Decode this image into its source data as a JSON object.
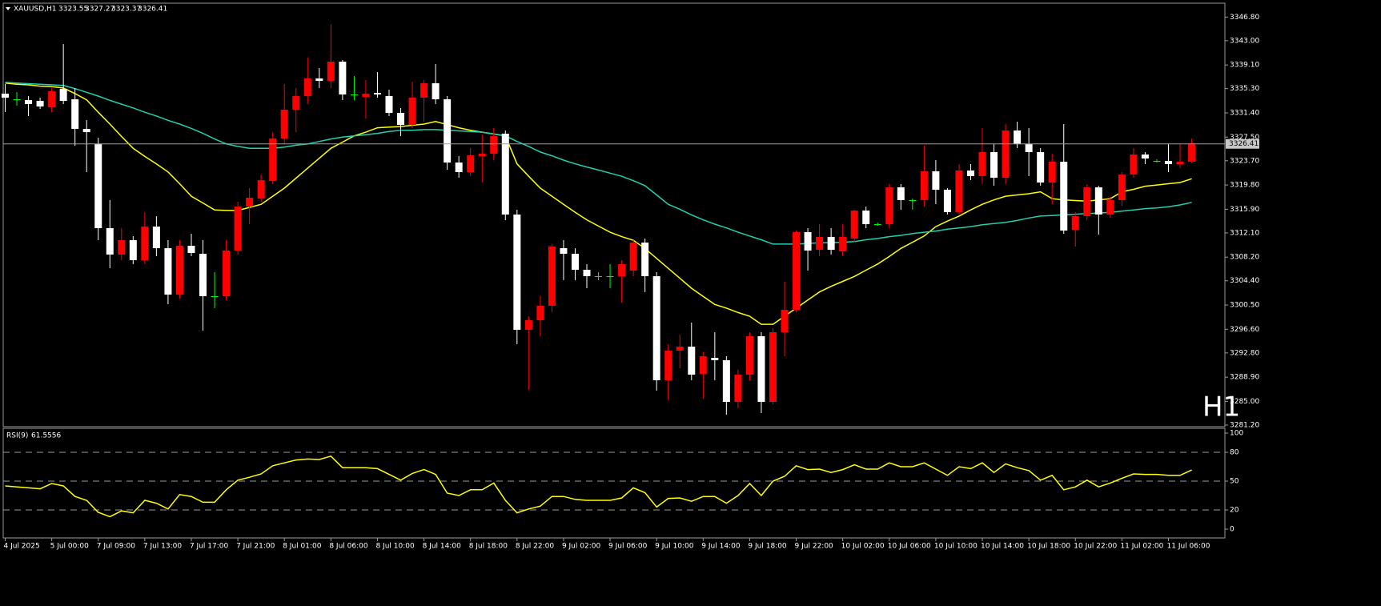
{
  "chart_data": [
    {
      "type": "candlestick",
      "symbol": "XAUUSD,H1",
      "watermark": "H1",
      "up_color": "#ff0000",
      "down_color": "#ffffff",
      "doji_color": "#00ff00",
      "price_line": true,
      "categories": [
        "4 Jul 2025",
        null,
        null,
        null,
        "5 Jul 00:00",
        null,
        null,
        null,
        "7 Jul 09:00",
        null,
        null,
        null,
        "7 Jul 13:00",
        null,
        null,
        null,
        "7 Jul 17:00",
        null,
        null,
        null,
        "7 Jul 21:00",
        null,
        null,
        null,
        "8 Jul 01:00",
        null,
        null,
        null,
        "8 Jul 06:00",
        null,
        null,
        null,
        "8 Jul 10:00",
        null,
        null,
        null,
        "8 Jul 14:00",
        null,
        null,
        null,
        "8 Jul 18:00",
        null,
        null,
        null,
        "8 Jul 22:00",
        null,
        null,
        null,
        "9 Jul 02:00",
        null,
        null,
        null,
        "9 Jul 06:00",
        null,
        null,
        null,
        "9 Jul 10:00",
        null,
        null,
        null,
        "9 Jul 14:00",
        null,
        null,
        null,
        "9 Jul 18:00",
        null,
        null,
        null,
        "9 Jul 22:00",
        null,
        null,
        null,
        "10 Jul 02:00",
        null,
        null,
        null,
        "10 Jul 06:00",
        null,
        null,
        null,
        "10 Jul 10:00",
        null,
        null,
        null,
        "10 Jul 14:00",
        null,
        null,
        null,
        "10 Jul 18:00",
        null,
        null,
        null,
        "10 Jul 22:00",
        null,
        null,
        null,
        "11 Jul 02:00",
        null,
        null,
        null,
        "11 Jul 06:00",
        null,
        null
      ],
      "open": [
        3334.48,
        3333.58,
        3333.45,
        3333.32,
        3332.29,
        3335.25,
        3333.58,
        3328.82,
        3326.37,
        3312.86,
        3308.61,
        3310.93,
        3307.71,
        3313.12,
        3309.64,
        3302.18,
        3310.03,
        3308.74,
        3301.92,
        3301.92,
        3309.26,
        3316.33,
        3317.62,
        3320.45,
        3327.28,
        3331.91,
        3334.1,
        3336.93,
        3336.54,
        3339.63,
        3334.35,
        3333.97,
        3334.61,
        3334.1,
        3331.39,
        3329.46,
        3333.84,
        3336.16,
        3333.58,
        3323.41,
        3321.87,
        3324.44,
        3324.83,
        3328.05,
        3315.05,
        3296.52,
        3298.06,
        3300.38,
        3309.64,
        3308.74,
        3306.17,
        3305.14,
        3305.14,
        3305.14,
        3306.04,
        3310.54,
        3305.14,
        3288.41,
        3293.17,
        3293.81,
        3289.44,
        3292.01,
        3291.63,
        3284.93,
        3289.31,
        3295.49,
        3284.93,
        3296.13,
        3299.73,
        3312.22,
        3309.38,
        3311.45,
        3309.13,
        3311.19,
        3315.69,
        3313.5,
        3313.5,
        3319.42,
        3317.37,
        3317.37,
        3322.0,
        3319.04,
        3315.43,
        3322.13,
        3321.23,
        3325.09,
        3320.97,
        3328.56,
        3326.37,
        3325.09,
        3320.2,
        3323.54,
        3312.6,
        3314.79,
        3319.42,
        3315.05,
        3317.37,
        3321.48,
        3324.7,
        3323.67,
        3323.67,
        3323.16,
        3323.55
      ],
      "high": [
        3336.03,
        3334.74,
        3334.1,
        3333.84,
        3335.38,
        3342.46,
        3335.38,
        3330.24,
        3327.4,
        3317.37,
        3312.86,
        3311.57,
        3315.43,
        3314.79,
        3310.93,
        3310.93,
        3311.96,
        3310.93,
        3305.78,
        3310.93,
        3317.11,
        3319.3,
        3321.48,
        3328.3,
        3336.03,
        3335.38,
        3340.27,
        3338.6,
        3345.68,
        3339.89,
        3337.31,
        3336.67,
        3337.96,
        3335.13,
        3332.17,
        3336.41,
        3336.67,
        3339.24,
        3334.1,
        3324.44,
        3325.73,
        3327.92,
        3328.95,
        3328.56,
        3315.82,
        3298.7,
        3301.92,
        3310.29,
        3310.93,
        3309.64,
        3307.07,
        3305.78,
        3307.07,
        3307.71,
        3310.93,
        3311.19,
        3305.78,
        3294.2,
        3295.74,
        3297.67,
        3292.91,
        3296.13,
        3292.27,
        3290.08,
        3296.13,
        3296.13,
        3296.77,
        3304.24,
        3312.47,
        3312.86,
        3313.5,
        3312.86,
        3313.5,
        3315.82,
        3316.33,
        3313.76,
        3319.94,
        3319.94,
        3317.62,
        3326.12,
        3323.8,
        3319.3,
        3323.16,
        3323.16,
        3328.95,
        3326.37,
        3329.59,
        3329.98,
        3328.95,
        3325.73,
        3324.83,
        3329.59,
        3315.43,
        3319.94,
        3319.68,
        3317.88,
        3321.87,
        3325.73,
        3325.09,
        3323.93,
        3326.37,
        3326.37,
        3327.27
      ],
      "low": [
        3331.52,
        3332.55,
        3330.88,
        3332.04,
        3331.52,
        3332.81,
        3326.12,
        3321.87,
        3310.93,
        3306.43,
        3307.71,
        3307.07,
        3307.07,
        3308.36,
        3300.63,
        3301.53,
        3308.36,
        3296.39,
        3299.99,
        3301.28,
        3308.61,
        3313.5,
        3317.11,
        3319.94,
        3326.37,
        3328.3,
        3332.81,
        3335.38,
        3335.38,
        3333.45,
        3333.45,
        3330.49,
        3333.84,
        3330.88,
        3327.66,
        3328.95,
        3329.98,
        3332.81,
        3322.26,
        3320.97,
        3321.23,
        3320.2,
        3323.8,
        3314.15,
        3294.2,
        3286.86,
        3295.49,
        3299.35,
        3304.5,
        3304.5,
        3303.21,
        3304.5,
        3303.21,
        3300.89,
        3305.14,
        3302.57,
        3286.73,
        3285.19,
        3290.34,
        3288.41,
        3285.45,
        3288.41,
        3282.87,
        3283.9,
        3288.41,
        3283.13,
        3284.55,
        3292.27,
        3299.35,
        3306.04,
        3308.36,
        3308.61,
        3308.36,
        3310.67,
        3312.86,
        3313.25,
        3312.86,
        3315.82,
        3315.82,
        3316.33,
        3316.72,
        3315.05,
        3315.05,
        3320.58,
        3319.94,
        3319.68,
        3319.94,
        3325.73,
        3321.23,
        3319.68,
        3316.72,
        3311.96,
        3309.9,
        3314.15,
        3311.83,
        3314.53,
        3316.46,
        3320.97,
        3323.16,
        3323.41,
        3321.87,
        3322.51,
        3323.37
      ],
      "close": [
        3333.84,
        3333.58,
        3332.81,
        3332.42,
        3334.87,
        3333.32,
        3328.82,
        3328.3,
        3312.86,
        3308.61,
        3310.93,
        3307.71,
        3313.12,
        3309.64,
        3302.18,
        3310.03,
        3308.87,
        3301.92,
        3301.92,
        3309.26,
        3316.33,
        3317.75,
        3320.58,
        3327.28,
        3331.91,
        3334.1,
        3336.93,
        3336.54,
        3339.63,
        3334.35,
        3334.35,
        3334.48,
        3334.35,
        3331.39,
        3329.46,
        3333.84,
        3336.16,
        3333.58,
        3323.41,
        3321.87,
        3324.57,
        3324.83,
        3327.66,
        3315.05,
        3296.52,
        3298.06,
        3300.38,
        3309.9,
        3308.74,
        3306.17,
        3305.14,
        3305.14,
        3305.14,
        3307.07,
        3310.54,
        3305.14,
        3288.41,
        3293.17,
        3293.81,
        3289.31,
        3292.27,
        3291.63,
        3284.93,
        3289.31,
        3295.49,
        3284.93,
        3296.13,
        3299.73,
        3312.22,
        3309.26,
        3311.45,
        3309.38,
        3311.45,
        3315.69,
        3313.5,
        3313.5,
        3319.42,
        3317.37,
        3317.37,
        3322.0,
        3319.04,
        3315.43,
        3322.13,
        3321.23,
        3325.09,
        3320.97,
        3328.56,
        3326.37,
        3325.09,
        3320.2,
        3323.54,
        3312.47,
        3314.79,
        3319.42,
        3315.05,
        3317.37,
        3321.48,
        3324.7,
        3324.06,
        3323.67,
        3323.16,
        3323.54,
        3326.41
      ],
      "series": [
        {
          "color": "#ffff00",
          "values": [
            3336.2,
            3336.0,
            3335.9,
            3335.7,
            3335.6,
            3335.4,
            3334.5,
            3333.5,
            3331.5,
            3329.6,
            3327.6,
            3325.7,
            3324.4,
            3323.2,
            3321.9,
            3320.0,
            3318.0,
            3316.9,
            3315.8,
            3315.7,
            3315.7,
            3316.2,
            3316.7,
            3318.0,
            3319.3,
            3320.9,
            3322.5,
            3324.1,
            3325.7,
            3326.7,
            3327.7,
            3328.3,
            3329.0,
            3329.1,
            3329.2,
            3329.4,
            3329.6,
            3330.0,
            3329.5,
            3329.0,
            3328.6,
            3328.3,
            3328.0,
            3327.7,
            3323.2,
            3321.2,
            3319.3,
            3318.0,
            3316.7,
            3315.4,
            3314.2,
            3313.2,
            3312.2,
            3311.5,
            3310.9,
            3309.6,
            3308.0,
            3306.4,
            3304.8,
            3303.2,
            3301.9,
            3300.6,
            3300.0,
            3299.3,
            3298.7,
            3297.4,
            3297.4,
            3298.7,
            3300.0,
            3301.3,
            3302.6,
            3303.5,
            3304.3,
            3305.1,
            3306.1,
            3307.1,
            3308.3,
            3309.6,
            3310.6,
            3311.6,
            3313.1,
            3314.0,
            3314.8,
            3315.8,
            3316.7,
            3317.4,
            3318.0,
            3318.2,
            3318.4,
            3318.7,
            3317.6,
            3317.4,
            3317.3,
            3317.2,
            3317.4,
            3317.6,
            3318.7,
            3319.1,
            3319.6,
            3319.8,
            3320.0,
            3320.2,
            3320.8
          ]
        },
        {
          "color": "#20d0b0",
          "values": [
            3336.3,
            3336.2,
            3336.1,
            3336.0,
            3335.9,
            3335.8,
            3335.3,
            3334.7,
            3334.1,
            3333.4,
            3332.8,
            3332.2,
            3331.5,
            3330.9,
            3330.2,
            3329.6,
            3328.9,
            3328.1,
            3327.2,
            3326.4,
            3326.0,
            3325.7,
            3325.7,
            3325.7,
            3325.9,
            3326.2,
            3326.4,
            3326.8,
            3327.2,
            3327.5,
            3327.7,
            3327.9,
            3328.1,
            3328.4,
            3328.6,
            3328.6,
            3328.7,
            3328.7,
            3328.6,
            3328.5,
            3328.4,
            3328.3,
            3328.0,
            3327.7,
            3326.8,
            3326.0,
            3325.1,
            3324.5,
            3323.8,
            3323.2,
            3322.7,
            3322.2,
            3321.7,
            3321.2,
            3320.5,
            3319.7,
            3318.2,
            3316.7,
            3315.9,
            3315.0,
            3314.2,
            3313.5,
            3312.9,
            3312.2,
            3311.6,
            3311.0,
            3310.3,
            3310.3,
            3310.3,
            3310.4,
            3310.5,
            3310.5,
            3310.6,
            3310.7,
            3311.0,
            3311.2,
            3311.5,
            3311.7,
            3312.0,
            3312.2,
            3312.4,
            3312.7,
            3312.9,
            3313.1,
            3313.4,
            3313.6,
            3313.8,
            3314.1,
            3314.5,
            3314.8,
            3314.9,
            3315.0,
            3315.1,
            3315.2,
            3315.3,
            3315.4,
            3315.6,
            3315.8,
            3316.0,
            3316.1,
            3316.3,
            3316.6,
            3317.0
          ]
        }
      ],
      "ylim": [
        3280.94,
        3349.03
      ],
      "yticks": [
        {
          "value": 3346.8,
          "label": "3346.80"
        },
        {
          "value": 3343.0,
          "label": "3343.00"
        },
        {
          "value": 3339.1,
          "label": "3339.10"
        },
        {
          "value": 3335.3,
          "label": "3335.30"
        },
        {
          "value": 3331.4,
          "label": "3331.40"
        },
        {
          "value": 3327.5,
          "label": "3327.50"
        },
        {
          "value": 3323.7,
          "label": "3323.70"
        },
        {
          "value": 3319.8,
          "label": "3319.80"
        },
        {
          "value": 3315.9,
          "label": "3315.90"
        },
        {
          "value": 3312.1,
          "label": "3312.10"
        },
        {
          "value": 3308.2,
          "label": "3308.20"
        },
        {
          "value": 3304.4,
          "label": "3304.40"
        },
        {
          "value": 3300.5,
          "label": "3300.50"
        },
        {
          "value": 3296.6,
          "label": "3296.60"
        },
        {
          "value": 3292.8,
          "label": "3292.80"
        },
        {
          "value": 3288.9,
          "label": "3288.90"
        },
        {
          "value": 3285.0,
          "label": "3285.00"
        },
        {
          "value": 3281.2,
          "label": "3281.20"
        }
      ]
    },
    {
      "type": "line",
      "title": "RSI(9)",
      "color": "#ffff00",
      "values": [
        45,
        44,
        43,
        42,
        47.5,
        45,
        34,
        30,
        17.5,
        13,
        19,
        17,
        30,
        27,
        21,
        36,
        34,
        28,
        28,
        41,
        51,
        54,
        57.5,
        66,
        69,
        72,
        73,
        72.5,
        76,
        64,
        64,
        64,
        63,
        57,
        51,
        58,
        62,
        57,
        37.5,
        35,
        41,
        41,
        48,
        30,
        17,
        21,
        24,
        34,
        34,
        31,
        30,
        30,
        30,
        32.5,
        43,
        38,
        23,
        32,
        32.5,
        29,
        34,
        34,
        27,
        35,
        47.5,
        35,
        50,
        55,
        66,
        62,
        62.5,
        59,
        62,
        67,
        62.5,
        62.5,
        69,
        65,
        65,
        69,
        62.5,
        56,
        65,
        63,
        69,
        59,
        68,
        64,
        61,
        51,
        56,
        41,
        44,
        51,
        44,
        48,
        53,
        57.5,
        57,
        57,
        56,
        56,
        61.5556
      ],
      "ylim": [
        -9.17,
        105
      ],
      "yticks": [
        100,
        80,
        50,
        20,
        0
      ],
      "levels": [
        80,
        50,
        20
      ]
    }
  ]
}
